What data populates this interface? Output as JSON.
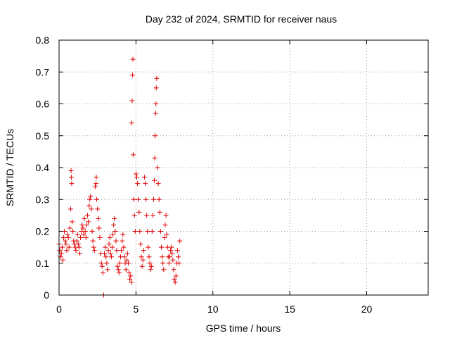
{
  "chart_data": {
    "type": "scatter",
    "title": "Day 232 of 2024, SRMTID for receiver naus",
    "xlabel": "GPS time / hours",
    "ylabel": "SRMTID / TECUs",
    "xlim": [
      0,
      24
    ],
    "ylim": [
      0,
      0.8
    ],
    "xticks": [
      0,
      5,
      10,
      15,
      20
    ],
    "xtick_labels": [
      "0",
      "5",
      "10",
      "15",
      "20"
    ],
    "yticks": [
      0,
      0.1,
      0.2,
      0.3,
      0.4,
      0.5,
      0.6,
      0.7,
      0.8
    ],
    "ytick_labels": [
      "0",
      "0.1",
      "0.2",
      "0.3",
      "0.4",
      "0.5",
      "0.6",
      "0.7",
      "0.8"
    ],
    "grid": true,
    "marker": "+",
    "color": "#e00000",
    "series": [
      {
        "name": "SRMTID",
        "points": [
          [
            0.0,
            0.16
          ],
          [
            0.05,
            0.14
          ],
          [
            0.1,
            0.12
          ],
          [
            0.15,
            0.13
          ],
          [
            0.2,
            0.15
          ],
          [
            0.25,
            0.11
          ],
          [
            0.3,
            0.18
          ],
          [
            0.35,
            0.2
          ],
          [
            0.4,
            0.17
          ],
          [
            0.45,
            0.16
          ],
          [
            0.5,
            0.14
          ],
          [
            0.55,
            0.19
          ],
          [
            0.6,
            0.18
          ],
          [
            0.65,
            0.15
          ],
          [
            0.7,
            0.21
          ],
          [
            0.75,
            0.27
          ],
          [
            0.78,
            0.39
          ],
          [
            0.8,
            0.37
          ],
          [
            0.82,
            0.35
          ],
          [
            0.85,
            0.23
          ],
          [
            0.9,
            0.2
          ],
          [
            0.95,
            0.17
          ],
          [
            1.0,
            0.16
          ],
          [
            1.05,
            0.15
          ],
          [
            1.1,
            0.14
          ],
          [
            1.15,
            0.17
          ],
          [
            1.2,
            0.19
          ],
          [
            1.25,
            0.16
          ],
          [
            1.3,
            0.15
          ],
          [
            1.35,
            0.13
          ],
          [
            1.4,
            0.18
          ],
          [
            1.45,
            0.2
          ],
          [
            1.5,
            0.22
          ],
          [
            1.55,
            0.21
          ],
          [
            1.6,
            0.19
          ],
          [
            1.65,
            0.24
          ],
          [
            1.7,
            0.2
          ],
          [
            1.75,
            0.18
          ],
          [
            1.8,
            0.22
          ],
          [
            1.85,
            0.25
          ],
          [
            1.9,
            0.23
          ],
          [
            1.95,
            0.28
          ],
          [
            2.0,
            0.3
          ],
          [
            2.05,
            0.31
          ],
          [
            2.1,
            0.27
          ],
          [
            2.15,
            0.2
          ],
          [
            2.2,
            0.17
          ],
          [
            2.25,
            0.15
          ],
          [
            2.3,
            0.14
          ],
          [
            2.35,
            0.34
          ],
          [
            2.4,
            0.35
          ],
          [
            2.42,
            0.37
          ],
          [
            2.45,
            0.3
          ],
          [
            2.5,
            0.27
          ],
          [
            2.55,
            0.24
          ],
          [
            2.6,
            0.21
          ],
          [
            2.65,
            0.18
          ],
          [
            2.7,
            0.13
          ],
          [
            2.75,
            0.1
          ],
          [
            2.8,
            0.09
          ],
          [
            2.85,
            0.07
          ],
          [
            2.9,
            0.0
          ],
          [
            2.95,
            0.13
          ],
          [
            3.0,
            0.15
          ],
          [
            3.05,
            0.12
          ],
          [
            3.1,
            0.1
          ],
          [
            3.15,
            0.08
          ],
          [
            3.2,
            0.14
          ],
          [
            3.25,
            0.16
          ],
          [
            3.3,
            0.18
          ],
          [
            3.35,
            0.13
          ],
          [
            3.4,
            0.12
          ],
          [
            3.45,
            0.15
          ],
          [
            3.5,
            0.19
          ],
          [
            3.55,
            0.22
          ],
          [
            3.6,
            0.24
          ],
          [
            3.65,
            0.2
          ],
          [
            3.7,
            0.17
          ],
          [
            3.75,
            0.14
          ],
          [
            3.8,
            0.09
          ],
          [
            3.85,
            0.08
          ],
          [
            3.9,
            0.07
          ],
          [
            3.95,
            0.1
          ],
          [
            4.0,
            0.12
          ],
          [
            4.05,
            0.14
          ],
          [
            4.1,
            0.17
          ],
          [
            4.15,
            0.19
          ],
          [
            4.2,
            0.15
          ],
          [
            4.25,
            0.12
          ],
          [
            4.3,
            0.1
          ],
          [
            4.35,
            0.08
          ],
          [
            4.4,
            0.11
          ],
          [
            4.45,
            0.13
          ],
          [
            4.5,
            0.1
          ],
          [
            4.55,
            0.07
          ],
          [
            4.6,
            0.05
          ],
          [
            4.65,
            0.06
          ],
          [
            4.7,
            0.04
          ],
          [
            4.72,
            0.54
          ],
          [
            4.75,
            0.61
          ],
          [
            4.78,
            0.69
          ],
          [
            4.8,
            0.74
          ],
          [
            4.82,
            0.44
          ],
          [
            4.85,
            0.3
          ],
          [
            4.9,
            0.25
          ],
          [
            4.95,
            0.2
          ],
          [
            5.0,
            0.38
          ],
          [
            5.05,
            0.37
          ],
          [
            5.1,
            0.35
          ],
          [
            5.15,
            0.3
          ],
          [
            5.2,
            0.26
          ],
          [
            5.25,
            0.2
          ],
          [
            5.3,
            0.16
          ],
          [
            5.35,
            0.12
          ],
          [
            5.4,
            0.09
          ],
          [
            5.45,
            0.11
          ],
          [
            5.5,
            0.14
          ],
          [
            5.55,
            0.37
          ],
          [
            5.6,
            0.35
          ],
          [
            5.65,
            0.3
          ],
          [
            5.7,
            0.25
          ],
          [
            5.75,
            0.2
          ],
          [
            5.8,
            0.15
          ],
          [
            5.85,
            0.12
          ],
          [
            5.9,
            0.1
          ],
          [
            5.95,
            0.08
          ],
          [
            6.0,
            0.09
          ],
          [
            6.05,
            0.2
          ],
          [
            6.1,
            0.25
          ],
          [
            6.15,
            0.3
          ],
          [
            6.2,
            0.36
          ],
          [
            6.22,
            0.43
          ],
          [
            6.25,
            0.5
          ],
          [
            6.28,
            0.57
          ],
          [
            6.3,
            0.6
          ],
          [
            6.32,
            0.65
          ],
          [
            6.35,
            0.68
          ],
          [
            6.4,
            0.4
          ],
          [
            6.45,
            0.35
          ],
          [
            6.5,
            0.3
          ],
          [
            6.55,
            0.26
          ],
          [
            6.6,
            0.2
          ],
          [
            6.65,
            0.15
          ],
          [
            6.7,
            0.12
          ],
          [
            6.75,
            0.1
          ],
          [
            6.8,
            0.08
          ],
          [
            6.85,
            0.18
          ],
          [
            6.9,
            0.22
          ],
          [
            6.95,
            0.25
          ],
          [
            7.0,
            0.19
          ],
          [
            7.05,
            0.15
          ],
          [
            7.1,
            0.12
          ],
          [
            7.15,
            0.1
          ],
          [
            7.2,
            0.12
          ],
          [
            7.25,
            0.14
          ],
          [
            7.3,
            0.15
          ],
          [
            7.35,
            0.13
          ],
          [
            7.4,
            0.11
          ],
          [
            7.45,
            0.08
          ],
          [
            7.5,
            0.05
          ],
          [
            7.55,
            0.04
          ],
          [
            7.6,
            0.06
          ],
          [
            7.65,
            0.1
          ],
          [
            7.7,
            0.14
          ],
          [
            7.75,
            0.12
          ],
          [
            7.8,
            0.1
          ],
          [
            7.85,
            0.17
          ]
        ]
      }
    ]
  }
}
